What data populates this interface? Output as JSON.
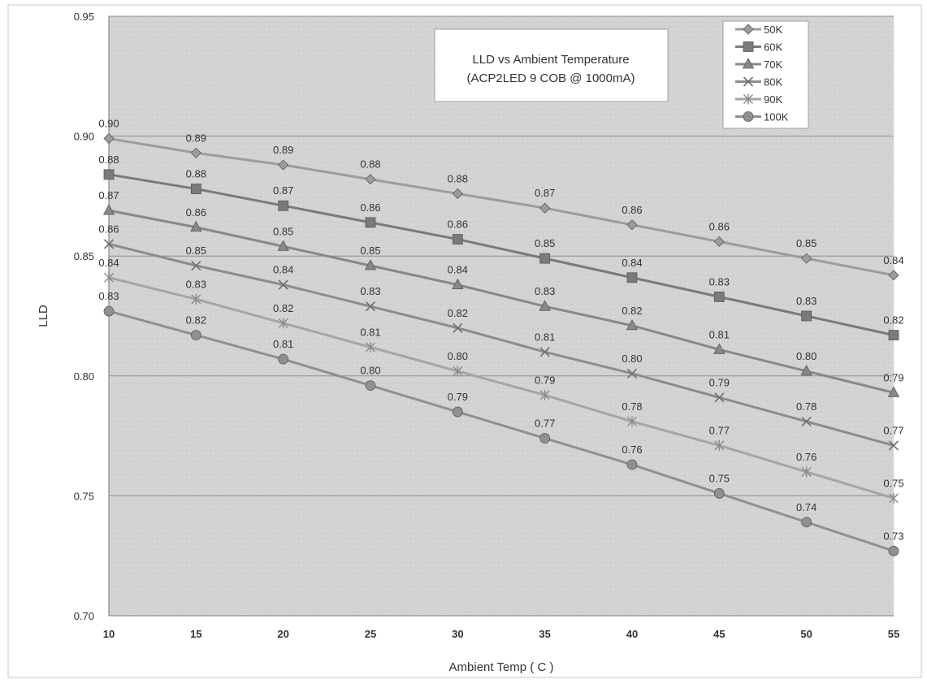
{
  "chart_data": {
    "type": "line",
    "title": "LLD vs Ambient Temperature",
    "subtitle": "(ACP2LED 9 COB @ 1000mA)",
    "xlabel": "Ambient Temp ( C )",
    "ylabel": "LLD",
    "x": [
      10,
      15,
      20,
      25,
      30,
      35,
      40,
      45,
      50,
      55
    ],
    "xlim": [
      10,
      55
    ],
    "ylim": [
      0.7,
      0.95
    ],
    "y_ticks": [
      "0.70",
      "0.75",
      "0.80",
      "0.85",
      "0.90",
      "0.95"
    ],
    "x_ticks": [
      "10",
      "15",
      "20",
      "25",
      "30",
      "35",
      "40",
      "45",
      "50",
      "55"
    ],
    "grid": "horizontal",
    "legend_position": "top-right",
    "series": [
      {
        "name": "50K",
        "marker": "diamond",
        "color": "#9c9c9c",
        "values": [
          0.899,
          0.893,
          0.888,
          0.882,
          0.876,
          0.87,
          0.863,
          0.856,
          0.849,
          0.842
        ],
        "labels": [
          "0.90",
          "0.89",
          "0.89",
          "0.88",
          "0.88",
          "0.87",
          "0.86",
          "0.86",
          "0.85",
          "0.84"
        ]
      },
      {
        "name": "60K",
        "marker": "square",
        "color": "#7a7a7a",
        "values": [
          0.884,
          0.878,
          0.871,
          0.864,
          0.857,
          0.849,
          0.841,
          0.833,
          0.825,
          0.817
        ],
        "labels": [
          "0.88",
          "0.88",
          "0.87",
          "0.86",
          "0.86",
          "0.85",
          "0.84",
          "0.83",
          "0.83",
          "0.82"
        ]
      },
      {
        "name": "70K",
        "marker": "triangle",
        "color": "#888888",
        "values": [
          0.869,
          0.862,
          0.854,
          0.846,
          0.838,
          0.829,
          0.821,
          0.811,
          0.802,
          0.793
        ],
        "labels": [
          "0.87",
          "0.86",
          "0.85",
          "0.85",
          "0.84",
          "0.83",
          "0.82",
          "0.81",
          "0.80",
          "0.79"
        ]
      },
      {
        "name": "80K",
        "marker": "x",
        "color": "#8c8c8c",
        "values": [
          0.855,
          0.846,
          0.838,
          0.829,
          0.82,
          0.81,
          0.801,
          0.791,
          0.781,
          0.771
        ],
        "labels": [
          "0.86",
          "0.85",
          "0.84",
          "0.83",
          "0.82",
          "0.81",
          "0.80",
          "0.79",
          "0.78",
          "0.77"
        ]
      },
      {
        "name": "90K",
        "marker": "star",
        "color": "#a5a5a5",
        "values": [
          0.841,
          0.832,
          0.822,
          0.812,
          0.802,
          0.792,
          0.781,
          0.771,
          0.76,
          0.749
        ],
        "labels": [
          "0.84",
          "0.83",
          "0.82",
          "0.81",
          "0.80",
          "0.79",
          "0.78",
          "0.77",
          "0.76",
          "0.75"
        ]
      },
      {
        "name": "100K",
        "marker": "circle",
        "color": "#909090",
        "values": [
          0.827,
          0.817,
          0.807,
          0.796,
          0.785,
          0.774,
          0.763,
          0.751,
          0.739,
          0.727
        ],
        "labels": [
          "0.83",
          "0.82",
          "0.81",
          "0.80",
          "0.79",
          "0.77",
          "0.76",
          "0.75",
          "0.74",
          "0.73"
        ]
      }
    ]
  }
}
